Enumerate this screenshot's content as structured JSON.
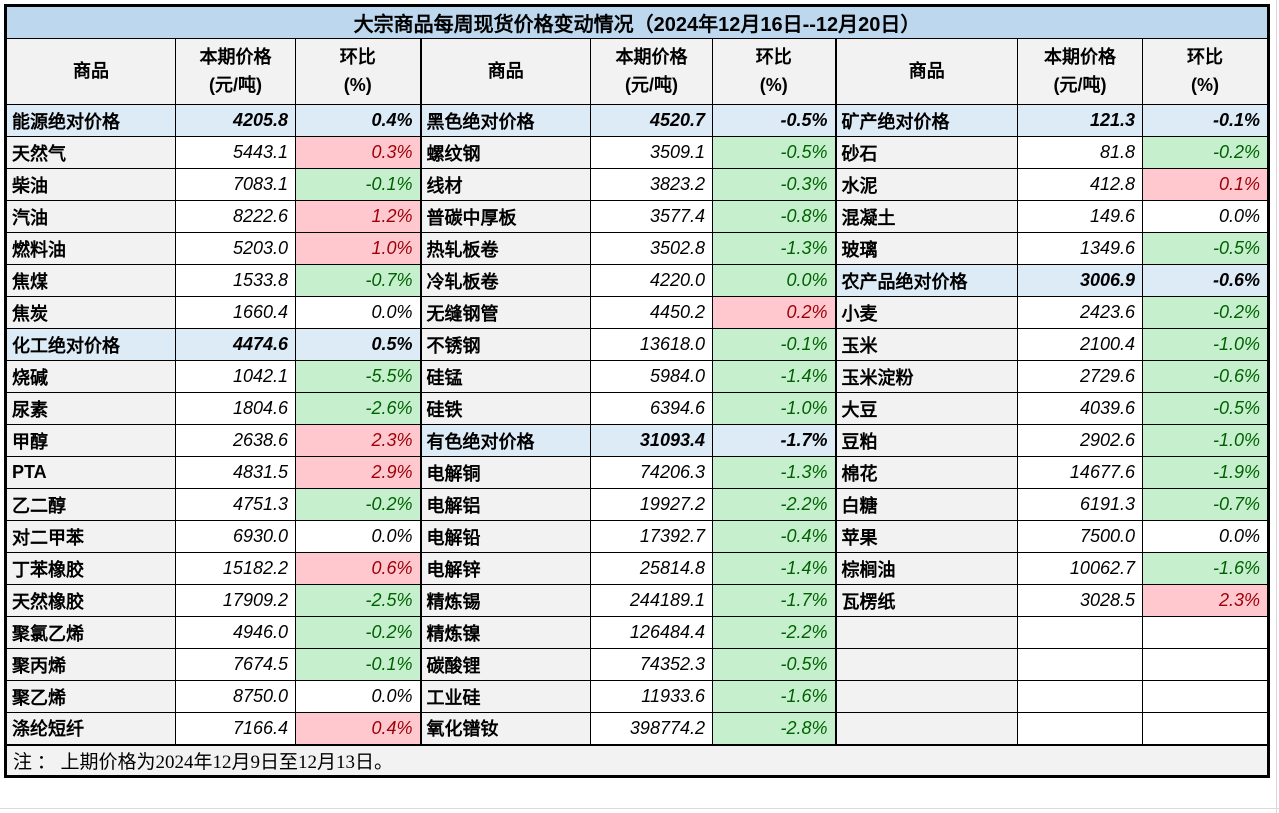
{
  "title": "大宗商品每周现货价格变动情况（2024年12月16日--12月20日）",
  "note": "注 ： 上期价格为2024年12月9日至12月13日。",
  "columns": {
    "commodity": "商品",
    "price_line1": "本期价格",
    "price_line2": "(元/吨)",
    "pct_line1": "环比",
    "pct_line2": "(%)"
  },
  "colors": {
    "title_bg": "#BDD7EE",
    "section_bg": "#DDEBF7",
    "header_bg": "#F2F2F2",
    "name_bg": "#F2F2F2",
    "note_bg": "#F2F2F2",
    "increase_bg": "#FFC7CE",
    "increase_text": "#9C0006",
    "decrease_bg": "#C6EFCE",
    "decrease_text": "#006100",
    "border": "#000000"
  },
  "groups": [
    {
      "rows": [
        {
          "name": "能源绝对价格",
          "price": "4205.8",
          "pct": "0.4%",
          "kind": "section"
        },
        {
          "name": "天然气",
          "price": "5443.1",
          "pct": "0.3%",
          "kind": "up"
        },
        {
          "name": "柴油",
          "price": "7083.1",
          "pct": "-0.1%",
          "kind": "down"
        },
        {
          "name": "汽油",
          "price": "8222.6",
          "pct": "1.2%",
          "kind": "up"
        },
        {
          "name": "燃料油",
          "price": "5203.0",
          "pct": "1.0%",
          "kind": "up"
        },
        {
          "name": "焦煤",
          "price": "1533.8",
          "pct": "-0.7%",
          "kind": "down"
        },
        {
          "name": "焦炭",
          "price": "1660.4",
          "pct": "0.0%",
          "kind": "flat"
        },
        {
          "name": "化工绝对价格",
          "price": "4474.6",
          "pct": "0.5%",
          "kind": "section"
        },
        {
          "name": "烧碱",
          "price": "1042.1",
          "pct": "-5.5%",
          "kind": "down"
        },
        {
          "name": "尿素",
          "price": "1804.6",
          "pct": "-2.6%",
          "kind": "down"
        },
        {
          "name": "甲醇",
          "price": "2638.6",
          "pct": "2.3%",
          "kind": "up"
        },
        {
          "name": "PTA",
          "price": "4831.5",
          "pct": "2.9%",
          "kind": "up"
        },
        {
          "name": "乙二醇",
          "price": "4751.3",
          "pct": "-0.2%",
          "kind": "down"
        },
        {
          "name": "对二甲苯",
          "price": "6930.0",
          "pct": "0.0%",
          "kind": "flat"
        },
        {
          "name": "丁苯橡胶",
          "price": "15182.2",
          "pct": "0.6%",
          "kind": "up"
        },
        {
          "name": "天然橡胶",
          "price": "17909.2",
          "pct": "-2.5%",
          "kind": "down"
        },
        {
          "name": "聚氯乙烯",
          "price": "4946.0",
          "pct": "-0.2%",
          "kind": "down"
        },
        {
          "name": "聚丙烯",
          "price": "7674.5",
          "pct": "-0.1%",
          "kind": "down"
        },
        {
          "name": "聚乙烯",
          "price": "8750.0",
          "pct": "0.0%",
          "kind": "flat"
        },
        {
          "name": "涤纶短纤",
          "price": "7166.4",
          "pct": "0.4%",
          "kind": "up"
        }
      ]
    },
    {
      "rows": [
        {
          "name": "黑色绝对价格",
          "price": "4520.7",
          "pct": "-0.5%",
          "kind": "section"
        },
        {
          "name": "螺纹钢",
          "price": "3509.1",
          "pct": "-0.5%",
          "kind": "down"
        },
        {
          "name": "线材",
          "price": "3823.2",
          "pct": "-0.3%",
          "kind": "down"
        },
        {
          "name": "普碳中厚板",
          "price": "3577.4",
          "pct": "-0.8%",
          "kind": "down"
        },
        {
          "name": "热轧板卷",
          "price": "3502.8",
          "pct": "-1.3%",
          "kind": "down"
        },
        {
          "name": "冷轧板卷",
          "price": "4220.0",
          "pct": "0.0%",
          "kind": "down"
        },
        {
          "name": "无缝钢管",
          "price": "4450.2",
          "pct": "0.2%",
          "kind": "up"
        },
        {
          "name": "不锈钢",
          "price": "13618.0",
          "pct": "-0.1%",
          "kind": "down"
        },
        {
          "name": "硅锰",
          "price": "5984.0",
          "pct": "-1.4%",
          "kind": "down"
        },
        {
          "name": "硅铁",
          "price": "6394.6",
          "pct": "-1.0%",
          "kind": "down"
        },
        {
          "name": "有色绝对价格",
          "price": "31093.4",
          "pct": "-1.7%",
          "kind": "section"
        },
        {
          "name": "电解铜",
          "price": "74206.3",
          "pct": "-1.3%",
          "kind": "down"
        },
        {
          "name": "电解铝",
          "price": "19927.2",
          "pct": "-2.2%",
          "kind": "down"
        },
        {
          "name": "电解铅",
          "price": "17392.7",
          "pct": "-0.4%",
          "kind": "down"
        },
        {
          "name": "电解锌",
          "price": "25814.8",
          "pct": "-1.4%",
          "kind": "down"
        },
        {
          "name": "精炼锡",
          "price": "244189.1",
          "pct": "-1.7%",
          "kind": "down"
        },
        {
          "name": "精炼镍",
          "price": "126484.4",
          "pct": "-2.2%",
          "kind": "down"
        },
        {
          "name": "碳酸锂",
          "price": "74352.3",
          "pct": "-0.5%",
          "kind": "down"
        },
        {
          "name": "工业硅",
          "price": "11933.6",
          "pct": "-1.6%",
          "kind": "down"
        },
        {
          "name": "氧化镨钕",
          "price": "398774.2",
          "pct": "-2.8%",
          "kind": "down"
        }
      ]
    },
    {
      "rows": [
        {
          "name": "矿产绝对价格",
          "price": "121.3",
          "pct": "-0.1%",
          "kind": "section"
        },
        {
          "name": "砂石",
          "price": "81.8",
          "pct": "-0.2%",
          "kind": "down"
        },
        {
          "name": "水泥",
          "price": "412.8",
          "pct": "0.1%",
          "kind": "up"
        },
        {
          "name": "混凝土",
          "price": "149.6",
          "pct": "0.0%",
          "kind": "flat"
        },
        {
          "name": "玻璃",
          "price": "1349.6",
          "pct": "-0.5%",
          "kind": "down"
        },
        {
          "name": "农产品绝对价格",
          "price": "3006.9",
          "pct": "-0.6%",
          "kind": "section"
        },
        {
          "name": "小麦",
          "price": "2423.6",
          "pct": "-0.2%",
          "kind": "down"
        },
        {
          "name": "玉米",
          "price": "2100.4",
          "pct": "-1.0%",
          "kind": "down"
        },
        {
          "name": "玉米淀粉",
          "price": "2729.6",
          "pct": "-0.6%",
          "kind": "down"
        },
        {
          "name": "大豆",
          "price": "4039.6",
          "pct": "-0.5%",
          "kind": "down"
        },
        {
          "name": "豆粕",
          "price": "2902.6",
          "pct": "-1.0%",
          "kind": "down"
        },
        {
          "name": "棉花",
          "price": "14677.6",
          "pct": "-1.9%",
          "kind": "down"
        },
        {
          "name": "白糖",
          "price": "6191.3",
          "pct": "-0.7%",
          "kind": "down"
        },
        {
          "name": "苹果",
          "price": "7500.0",
          "pct": "0.0%",
          "kind": "flat"
        },
        {
          "name": "棕榈油",
          "price": "10062.7",
          "pct": "-1.6%",
          "kind": "down"
        },
        {
          "name": "瓦楞纸",
          "price": "3028.5",
          "pct": "2.3%",
          "kind": "up"
        },
        {
          "name": "",
          "price": "",
          "pct": "",
          "kind": "empty"
        },
        {
          "name": "",
          "price": "",
          "pct": "",
          "kind": "empty"
        },
        {
          "name": "",
          "price": "",
          "pct": "",
          "kind": "empty"
        },
        {
          "name": "",
          "price": "",
          "pct": "",
          "kind": "empty"
        }
      ]
    }
  ]
}
